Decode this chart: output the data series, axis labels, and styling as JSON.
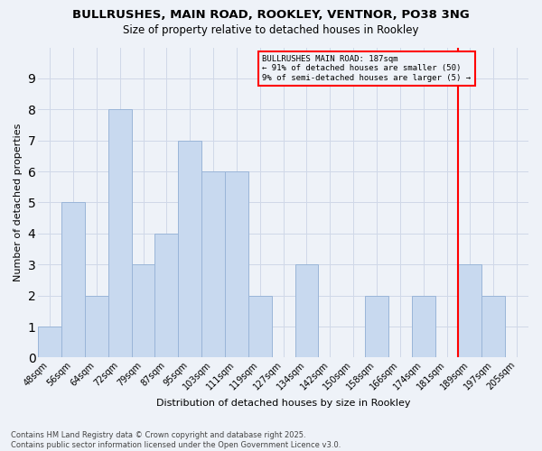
{
  "title1": "BULLRUSHES, MAIN ROAD, ROOKLEY, VENTNOR, PO38 3NG",
  "title2": "Size of property relative to detached houses in Rookley",
  "xlabel": "Distribution of detached houses by size in Rookley",
  "ylabel": "Number of detached properties",
  "categories": [
    "48sqm",
    "56sqm",
    "64sqm",
    "72sqm",
    "79sqm",
    "87sqm",
    "95sqm",
    "103sqm",
    "111sqm",
    "119sqm",
    "127sqm",
    "134sqm",
    "142sqm",
    "150sqm",
    "158sqm",
    "166sqm",
    "174sqm",
    "181sqm",
    "189sqm",
    "197sqm",
    "205sqm"
  ],
  "values": [
    1,
    5,
    2,
    8,
    3,
    4,
    7,
    6,
    6,
    2,
    0,
    3,
    0,
    0,
    2,
    0,
    2,
    0,
    3,
    2,
    0
  ],
  "bar_color": "#c8d9ef",
  "bar_edge_color": "#9ab5d8",
  "grid_color": "#d0d8e8",
  "reference_line_color": "red",
  "annotation_title": "BULLRUSHES MAIN ROAD: 187sqm",
  "annotation_line1": "← 91% of detached houses are smaller (50)",
  "annotation_line2": "9% of semi-detached houses are larger (5) →",
  "ylim": [
    0,
    10
  ],
  "yticks": [
    0,
    1,
    2,
    3,
    4,
    5,
    6,
    7,
    8,
    9,
    10
  ],
  "footer": "Contains HM Land Registry data © Crown copyright and database right 2025.\nContains public sector information licensed under the Open Government Licence v3.0.",
  "bg_color": "#eef2f8"
}
